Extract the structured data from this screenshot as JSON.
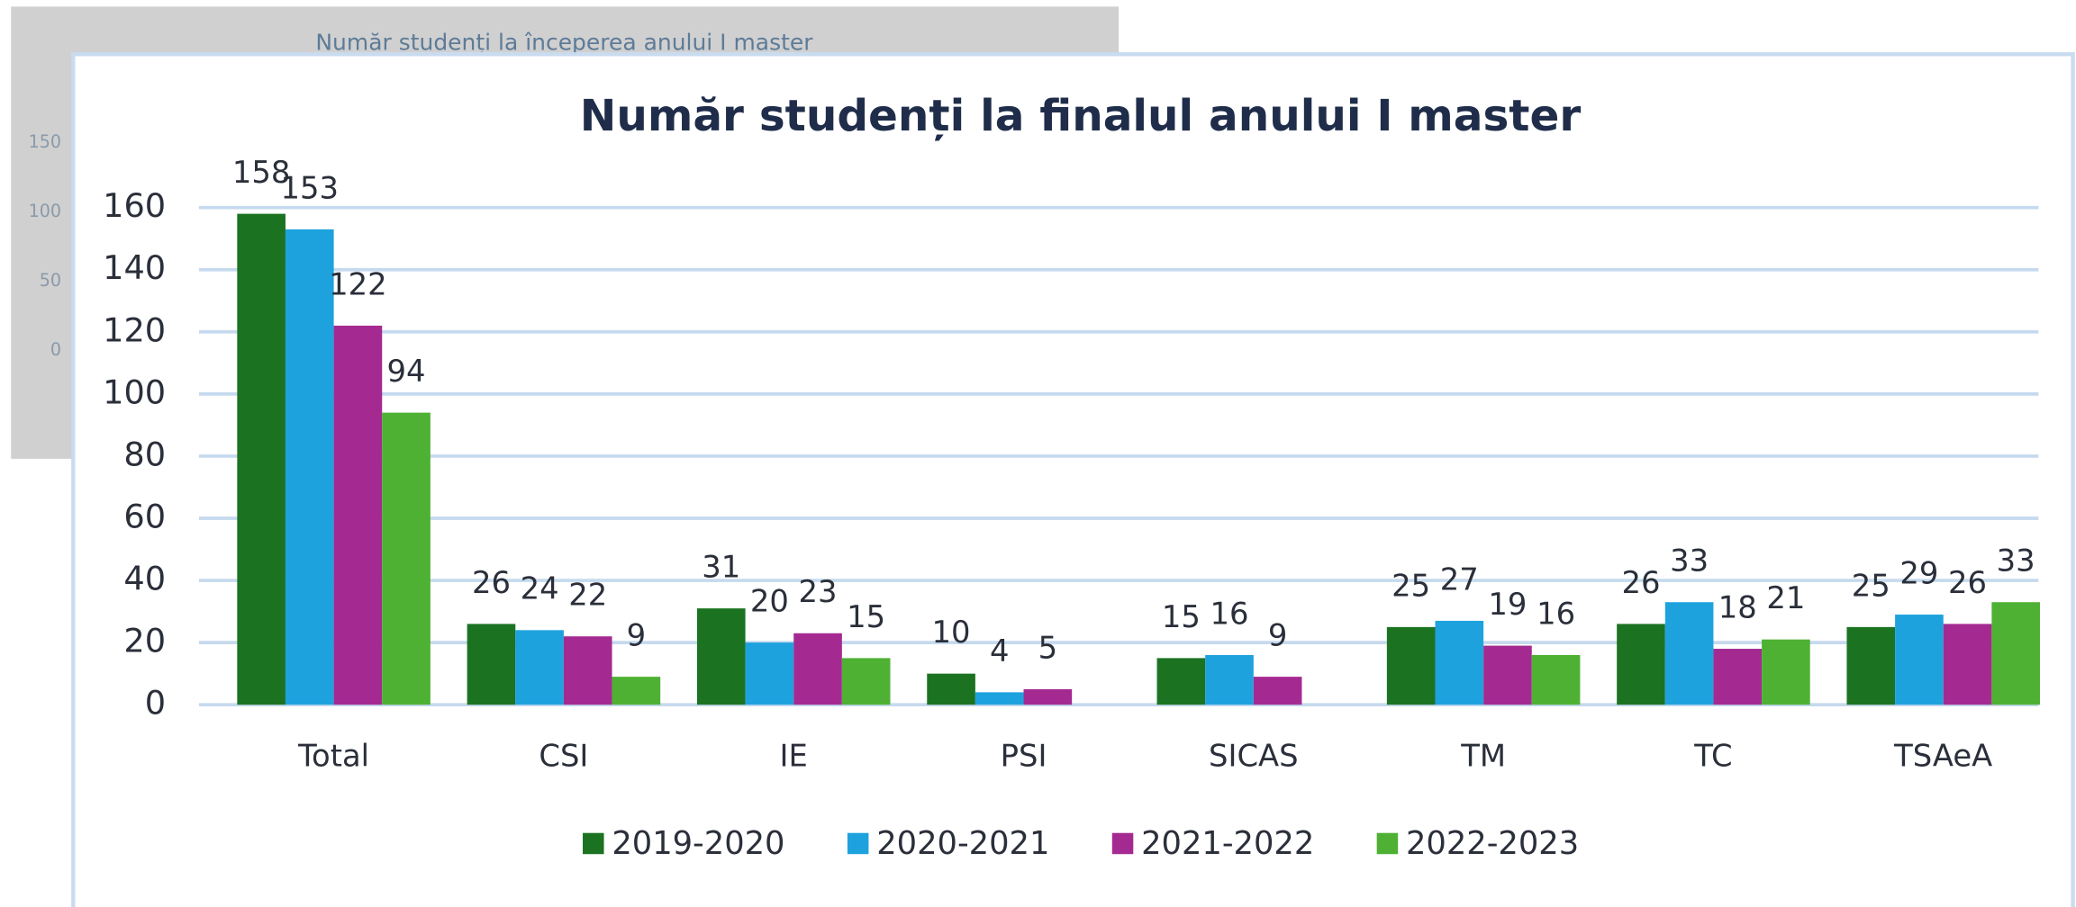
{
  "chart_data": [
    {
      "type": "bar",
      "title": "Număr studenți la finalul anului I master",
      "categories": [
        "Total",
        "CSI",
        "IE",
        "PSI",
        "SICAS",
        "TM",
        "TC",
        "TSAeA"
      ],
      "series": [
        {
          "name": "2019-2020",
          "color": "#1b7322",
          "values": [
            158,
            26,
            31,
            10,
            15,
            25,
            26,
            25
          ]
        },
        {
          "name": "2020-2021",
          "color": "#1ea2de",
          "values": [
            153,
            24,
            20,
            4,
            16,
            27,
            33,
            29
          ]
        },
        {
          "name": "2021-2022",
          "color": "#a42a92",
          "values": [
            122,
            22,
            23,
            5,
            9,
            19,
            18,
            26
          ]
        },
        {
          "name": "2022-2023",
          "color": "#4eb133",
          "values": [
            94,
            9,
            15,
            null,
            null,
            16,
            21,
            33
          ]
        }
      ],
      "ylim": [
        0,
        160
      ],
      "yticks": [
        0,
        20,
        40,
        60,
        80,
        100,
        120,
        140,
        160
      ],
      "grid": true,
      "legend": "bottom"
    },
    {
      "type": "bar",
      "title": "Număr studenți la începerea anului I master",
      "ylim": [
        0,
        150
      ],
      "yticks": [
        0,
        50,
        100,
        150
      ]
    }
  ]
}
